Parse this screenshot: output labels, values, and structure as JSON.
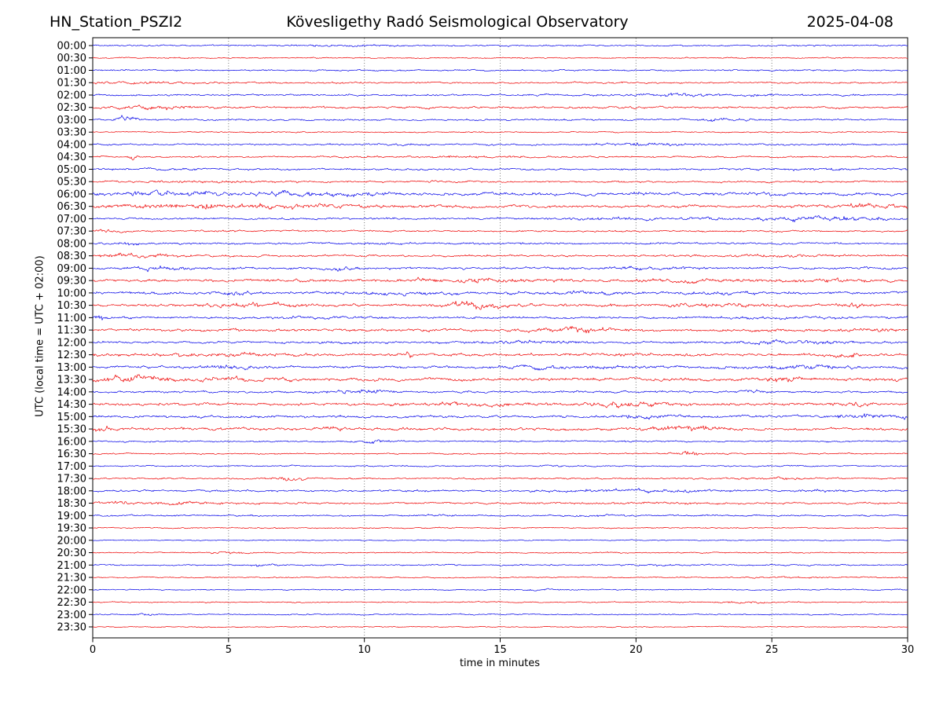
{
  "title": {
    "station": "HN_Station_PSZI2",
    "observatory": "Kövesligethy Radó Seismological Observatory",
    "date": "2025-04-08"
  },
  "axes": {
    "xlabel": "time in minutes",
    "ylabel": "UTC (local time = UTC + 02:00)",
    "xticks": [
      0,
      5,
      10,
      15,
      20,
      25,
      30
    ],
    "xmin": 0,
    "xmax": 30
  },
  "colors": {
    "trace_blue": "#0000e8",
    "trace_red": "#ee0000",
    "grid": "#777777",
    "frame": "#000000",
    "text": "#000000"
  },
  "chart_data": {
    "type": "line",
    "description": "Helicorder / drum seismogram: 48 rows of 30-minute traces, alternating blue (full hour) and red (half hour). base = background noise amplitude (px), bursts = [center_min, half_width_min, extra_amp_px] visible event packets.",
    "xlabel": "time in minutes",
    "xrange": [
      0,
      30
    ],
    "rows": [
      {
        "t": "00:00",
        "c": "b",
        "a": 0.9,
        "e": [
          [
            9,
            2,
            0.5
          ]
        ]
      },
      {
        "t": "00:30",
        "c": "r",
        "a": 0.7,
        "e": []
      },
      {
        "t": "01:00",
        "c": "b",
        "a": 0.9,
        "e": []
      },
      {
        "t": "01:30",
        "c": "r",
        "a": 1.0,
        "e": [
          [
            2,
            2,
            0.8
          ]
        ]
      },
      {
        "t": "02:00",
        "c": "b",
        "a": 1.1,
        "e": [
          [
            21.5,
            1.5,
            1.2
          ],
          [
            24.5,
            0.8,
            0.8
          ]
        ]
      },
      {
        "t": "02:30",
        "c": "r",
        "a": 1.2,
        "e": [
          [
            2.5,
            1.5,
            1.3
          ]
        ]
      },
      {
        "t": "03:00",
        "c": "b",
        "a": 1.0,
        "e": [
          [
            1.3,
            0.4,
            3.2
          ],
          [
            23.2,
            0.8,
            1.2
          ]
        ]
      },
      {
        "t": "03:30",
        "c": "r",
        "a": 0.7,
        "e": []
      },
      {
        "t": "04:00",
        "c": "b",
        "a": 1.0,
        "e": [
          [
            20.5,
            1.5,
            1.3
          ],
          [
            11,
            1,
            0.5
          ]
        ]
      },
      {
        "t": "04:30",
        "c": "r",
        "a": 1.0,
        "e": [
          [
            1.5,
            0.2,
            2.5
          ],
          [
            14,
            2,
            0.4
          ]
        ]
      },
      {
        "t": "05:00",
        "c": "b",
        "a": 1.1,
        "e": [
          [
            3,
            1,
            0.6
          ],
          [
            26,
            2,
            0.5
          ]
        ]
      },
      {
        "t": "05:30",
        "c": "r",
        "a": 1.1,
        "e": [
          [
            4,
            2,
            0.6
          ]
        ]
      },
      {
        "t": "06:00",
        "c": "b",
        "a": 1.8,
        "e": [
          [
            2,
            2,
            1.2
          ],
          [
            7,
            3,
            1.0
          ],
          [
            10,
            1,
            1.0
          ]
        ]
      },
      {
        "t": "06:30",
        "c": "r",
        "a": 1.6,
        "e": [
          [
            4.2,
            0.3,
            2.8
          ],
          [
            2,
            2,
            1.2
          ],
          [
            7,
            3,
            1.2
          ],
          [
            28.5,
            1.5,
            1.8
          ]
        ]
      },
      {
        "t": "07:00",
        "c": "b",
        "a": 1.2,
        "e": [
          [
            20,
            3,
            0.8
          ],
          [
            27,
            2.5,
            2.0
          ]
        ]
      },
      {
        "t": "07:30",
        "c": "r",
        "a": 1.0,
        "e": [
          [
            0.5,
            0.5,
            2.0
          ]
        ]
      },
      {
        "t": "08:00",
        "c": "b",
        "a": 1.1,
        "e": [
          [
            1.3,
            0.3,
            2.8
          ],
          [
            11,
            4,
            0.4
          ]
        ]
      },
      {
        "t": "08:30",
        "c": "r",
        "a": 1.2,
        "e": [
          [
            1.5,
            1.5,
            1.5
          ],
          [
            25,
            3,
            0.6
          ]
        ]
      },
      {
        "t": "09:00",
        "c": "b",
        "a": 1.3,
        "e": [
          [
            2.5,
            1,
            1.5
          ],
          [
            9,
            1,
            1.2
          ],
          [
            20,
            2,
            0.8
          ]
        ]
      },
      {
        "t": "09:30",
        "c": "r",
        "a": 1.6,
        "e": [
          [
            14,
            2.5,
            1.5
          ],
          [
            22,
            2,
            0.8
          ],
          [
            27,
            1.5,
            1.0
          ]
        ]
      },
      {
        "t": "10:00",
        "c": "b",
        "a": 1.5,
        "e": [
          [
            5,
            1,
            1.0
          ],
          [
            12,
            2,
            0.8
          ],
          [
            18,
            2,
            0.8
          ],
          [
            23,
            1,
            1.0
          ]
        ]
      },
      {
        "t": "10:30",
        "c": "r",
        "a": 1.6,
        "e": [
          [
            6,
            1.5,
            1.8
          ],
          [
            14,
            1.2,
            2.8
          ],
          [
            22.5,
            2.5,
            1.2
          ],
          [
            28,
            0.5,
            1.5
          ]
        ]
      },
      {
        "t": "11:00",
        "c": "b",
        "a": 1.3,
        "e": [
          [
            0.3,
            0.3,
            2.2
          ],
          [
            8,
            2,
            0.6
          ],
          [
            25,
            2,
            0.6
          ]
        ]
      },
      {
        "t": "11:30",
        "c": "r",
        "a": 1.5,
        "e": [
          [
            18,
            1.5,
            2.0
          ],
          [
            28.5,
            1,
            1.2
          ]
        ]
      },
      {
        "t": "12:00",
        "c": "b",
        "a": 1.3,
        "e": [
          [
            16,
            1.5,
            1.3
          ],
          [
            25.5,
            2,
            1.5
          ],
          [
            9,
            1,
            0.6
          ]
        ]
      },
      {
        "t": "12:30",
        "c": "r",
        "a": 1.5,
        "e": [
          [
            4,
            3,
            1.0
          ],
          [
            11.5,
            0.3,
            2.2
          ],
          [
            27.8,
            0.5,
            2.2
          ],
          [
            20,
            2,
            0.6
          ]
        ]
      },
      {
        "t": "13:00",
        "c": "b",
        "a": 1.5,
        "e": [
          [
            5,
            1,
            1.5
          ],
          [
            18,
            2.5,
            1.2
          ],
          [
            26.5,
            1.5,
            1.5
          ]
        ]
      },
      {
        "t": "13:30",
        "c": "r",
        "a": 1.8,
        "e": [
          [
            1.5,
            1.2,
            2.8
          ],
          [
            5.5,
            1.5,
            1.2
          ],
          [
            25.5,
            0.8,
            2.2
          ]
        ]
      },
      {
        "t": "14:00",
        "c": "b",
        "a": 1.2,
        "e": [
          [
            9.8,
            1,
            1.8
          ],
          [
            24.5,
            0.4,
            2.0
          ],
          [
            14,
            1,
            0.6
          ]
        ]
      },
      {
        "t": "14:30",
        "c": "r",
        "a": 1.6,
        "e": [
          [
            14,
            2,
            1.2
          ],
          [
            20,
            1.5,
            1.8
          ],
          [
            28,
            0.5,
            1.3
          ]
        ]
      },
      {
        "t": "15:00",
        "c": "b",
        "a": 1.4,
        "e": [
          [
            19.8,
            0.3,
            3.0
          ],
          [
            21,
            1,
            1.0
          ],
          [
            28.5,
            1.5,
            1.6
          ]
        ]
      },
      {
        "t": "15:30",
        "c": "r",
        "a": 1.6,
        "e": [
          [
            0.4,
            0.3,
            2.6
          ],
          [
            8.8,
            0.4,
            2.0
          ],
          [
            22,
            1.5,
            1.8
          ]
        ]
      },
      {
        "t": "16:00",
        "c": "b",
        "a": 0.9,
        "e": [
          [
            10.3,
            0.6,
            1.6
          ]
        ]
      },
      {
        "t": "16:30",
        "c": "r",
        "a": 0.8,
        "e": [
          [
            22,
            0.8,
            1.4
          ]
        ]
      },
      {
        "t": "17:00",
        "c": "b",
        "a": 0.8,
        "e": [
          [
            17,
            0.5,
            0.6
          ]
        ]
      },
      {
        "t": "17:30",
        "c": "r",
        "a": 0.9,
        "e": [
          [
            7.2,
            0.6,
            2.2
          ],
          [
            25,
            2,
            0.5
          ]
        ]
      },
      {
        "t": "18:00",
        "c": "b",
        "a": 1.1,
        "e": [
          [
            20,
            3,
            1.0
          ],
          [
            27,
            1,
            0.6
          ]
        ]
      },
      {
        "t": "18:30",
        "c": "r",
        "a": 1.1,
        "e": [
          [
            1,
            0.5,
            1.5
          ],
          [
            3,
            2,
            0.8
          ],
          [
            21,
            2,
            0.5
          ]
        ]
      },
      {
        "t": "19:00",
        "c": "b",
        "a": 0.9,
        "e": [
          [
            12.8,
            0.8,
            0.7
          ],
          [
            18.3,
            1,
            0.9
          ]
        ]
      },
      {
        "t": "19:30",
        "c": "r",
        "a": 0.7,
        "e": []
      },
      {
        "t": "20:00",
        "c": "b",
        "a": 0.6,
        "e": []
      },
      {
        "t": "20:30",
        "c": "r",
        "a": 0.7,
        "e": [
          [
            5.1,
            0.6,
            1.4
          ]
        ]
      },
      {
        "t": "21:00",
        "c": "b",
        "a": 0.8,
        "e": [
          [
            6.3,
            0.8,
            0.9
          ],
          [
            20.5,
            1,
            0.5
          ]
        ]
      },
      {
        "t": "21:30",
        "c": "r",
        "a": 0.7,
        "e": [
          [
            26,
            1.5,
            0.5
          ]
        ]
      },
      {
        "t": "22:00",
        "c": "b",
        "a": 0.7,
        "e": [
          [
            16.5,
            0.8,
            0.7
          ]
        ]
      },
      {
        "t": "22:30",
        "c": "r",
        "a": 0.7,
        "e": [
          [
            24,
            1,
            0.8
          ]
        ]
      },
      {
        "t": "23:00",
        "c": "b",
        "a": 0.7,
        "e": [
          [
            1.8,
            0.4,
            1.2
          ]
        ]
      },
      {
        "t": "23:30",
        "c": "r",
        "a": 0.6,
        "e": []
      }
    ]
  }
}
